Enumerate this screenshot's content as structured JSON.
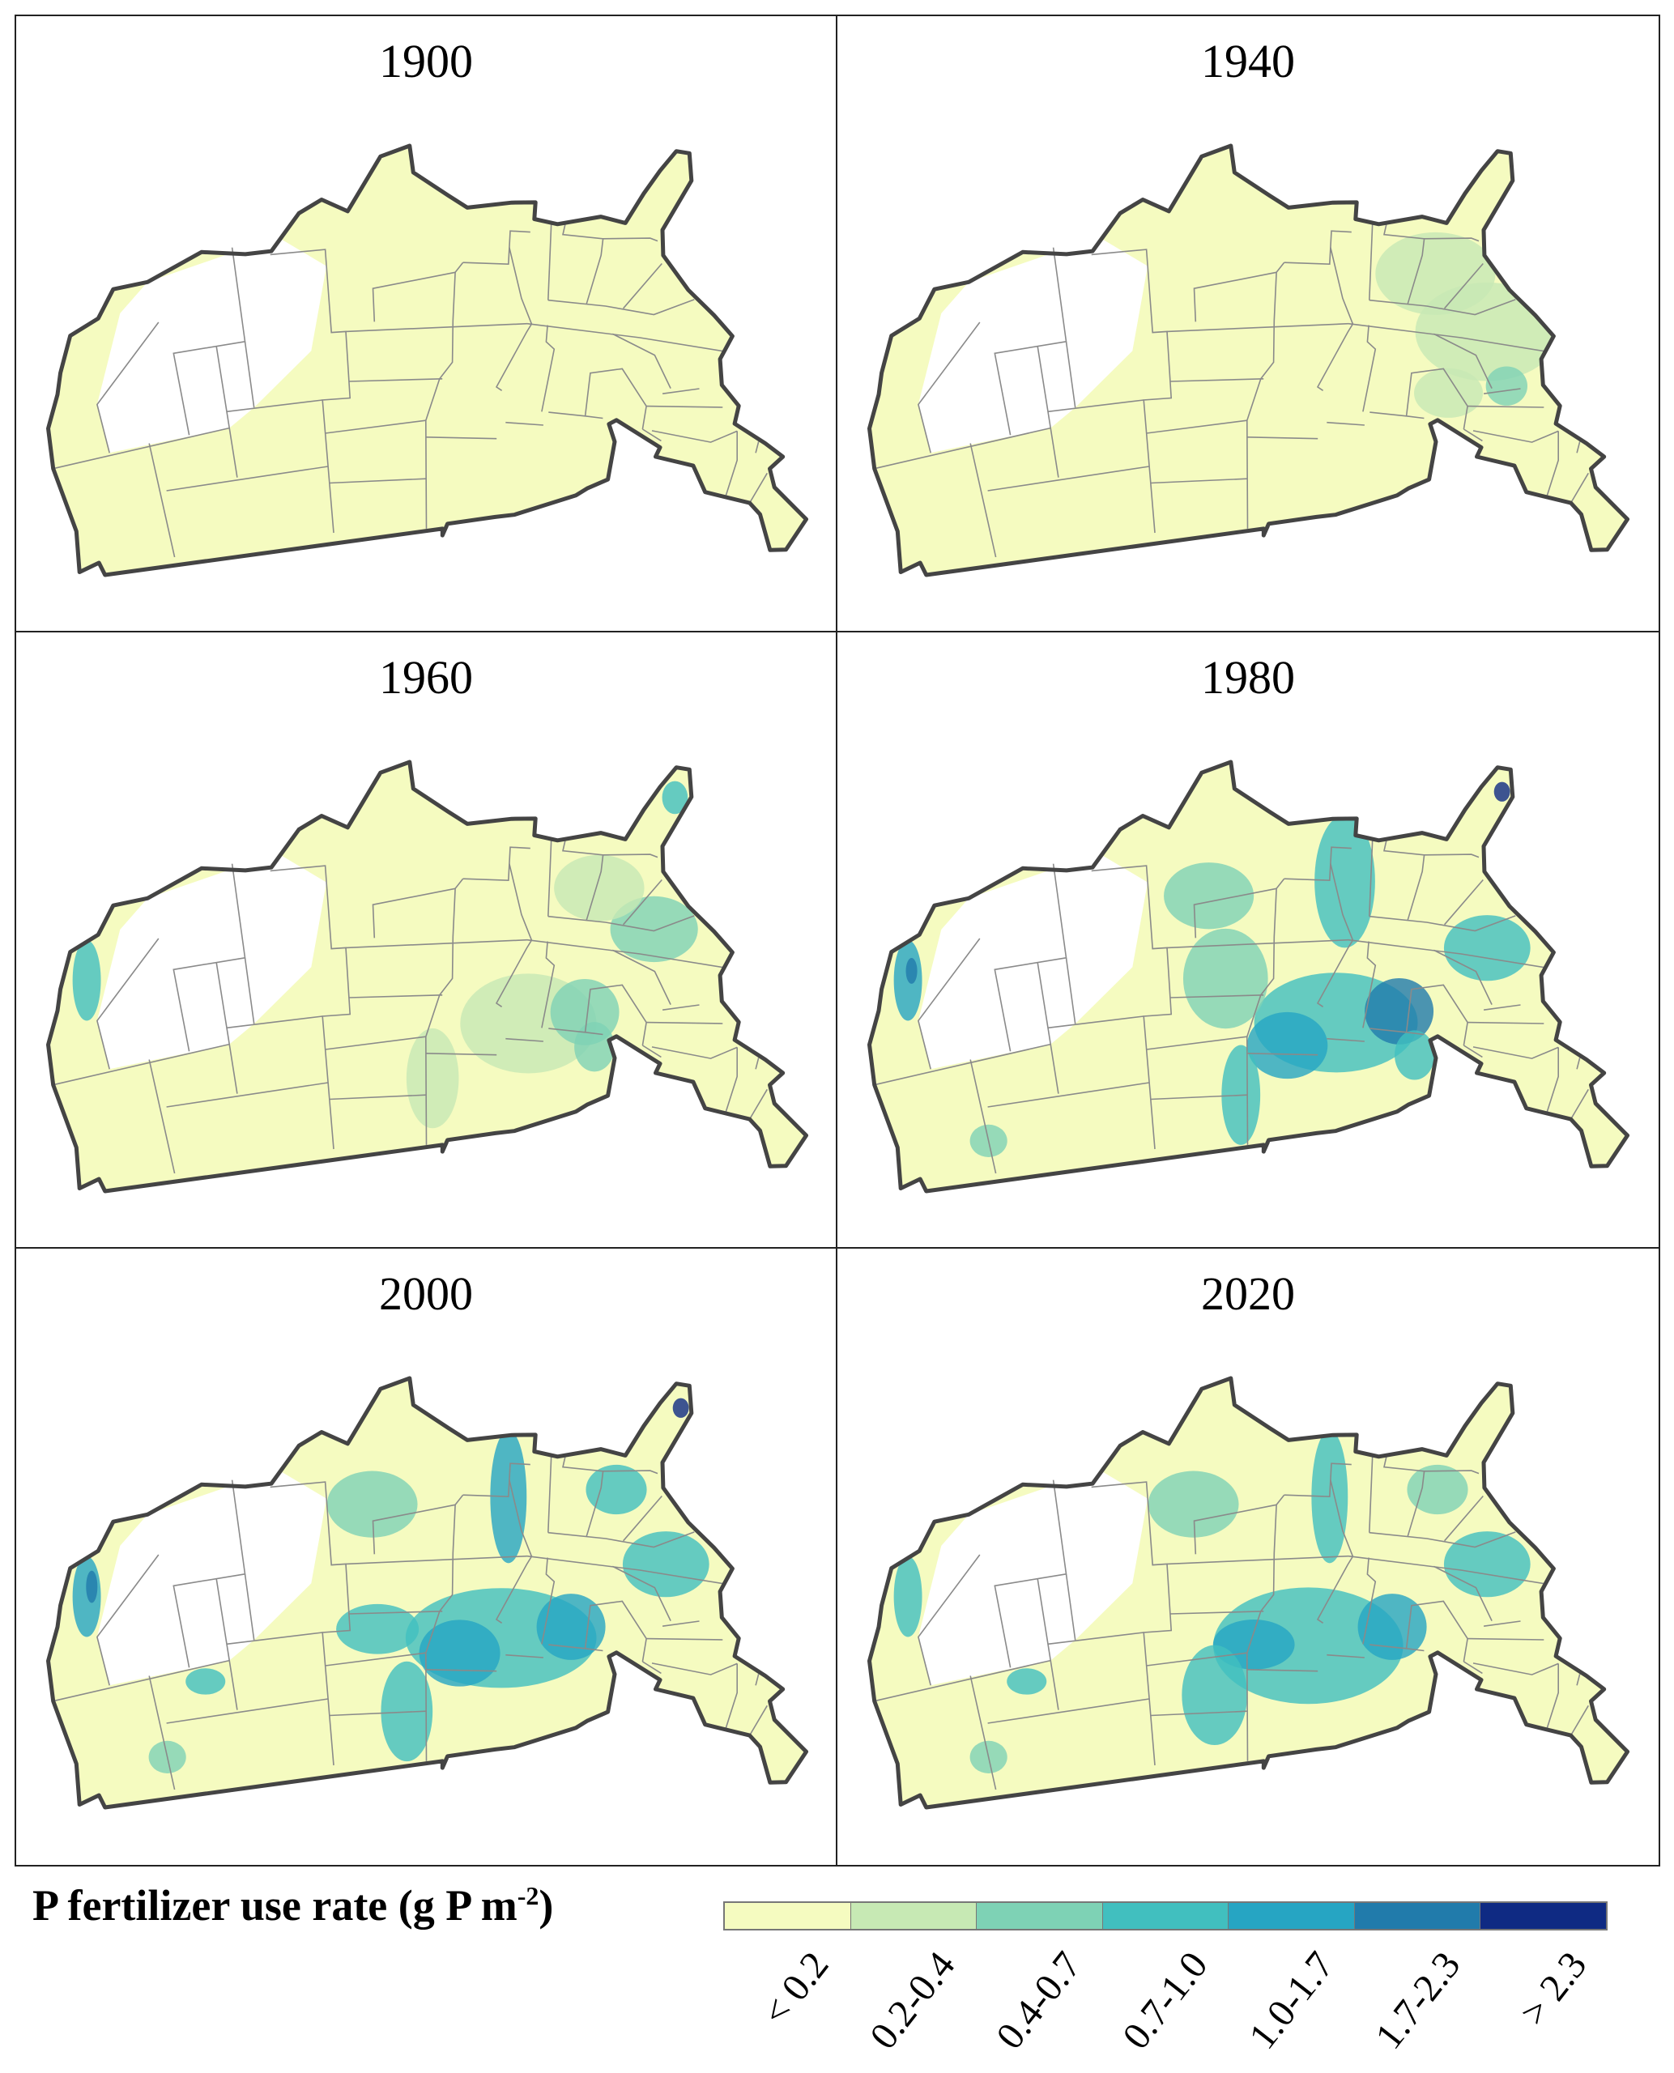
{
  "chart_data": {
    "type": "heatmap",
    "title": "",
    "legend": {
      "title_main": "P fertilizer use rate (g P m",
      "title_sup": "-2",
      "title_end": ")",
      "placement": "bottom",
      "classes": [
        "< 0.2",
        "0.2-0.4",
        "0.4-0.7",
        "0.7-1.0",
        "1.0-1.7",
        "1.7-2.3",
        "> 2.3"
      ],
      "colors": [
        "#f5fbc0",
        "#c7e9b4",
        "#7ed2b5",
        "#41bfbf",
        "#26a5c3",
        "#217bab",
        "#0f2a83"
      ]
    },
    "panels": [
      {
        "year": "1900",
        "hotspots": []
      },
      {
        "year": "1940",
        "hotspots": [
          [
            -80,
            36,
            5,
            3,
            1
          ],
          [
            -84,
            33,
            4,
            2.5,
            1
          ],
          [
            -82,
            40,
            2.5,
            1.5,
            1
          ],
          [
            -78,
            39,
            1.5,
            1.2,
            2
          ]
        ]
      },
      {
        "year": "1960",
        "hotspots": [
          [
            -89,
            41.5,
            5,
            3,
            1
          ],
          [
            -85,
            40.5,
            2.5,
            2,
            2
          ],
          [
            -84,
            42.5,
            1.5,
            1.5,
            2
          ],
          [
            -81,
            35,
            3,
            2,
            2
          ],
          [
            -85,
            33,
            3,
            2,
            1
          ],
          [
            -120,
            36.5,
            1,
            2.5,
            3
          ],
          [
            -81,
            27,
            0.8,
            1,
            3
          ],
          [
            -96,
            45,
            2,
            3,
            1
          ]
        ]
      },
      {
        "year": "1980",
        "hotspots": [
          [
            -90,
            41.5,
            6,
            3,
            3
          ],
          [
            -85.5,
            40.5,
            2.5,
            2,
            5
          ],
          [
            -84,
            43,
            1.5,
            1.5,
            3
          ],
          [
            -93.5,
            43,
            3,
            2,
            4
          ],
          [
            -97,
            46,
            1.5,
            3,
            3
          ],
          [
            -98,
            39,
            3,
            3,
            2
          ],
          [
            -80,
            36,
            3,
            2,
            3
          ],
          [
            -90,
            33,
            2,
            4,
            3
          ],
          [
            -120,
            36.5,
            1,
            2.5,
            4
          ],
          [
            -119.6,
            36,
            0.4,
            0.8,
            5
          ],
          [
            -80.7,
            26.6,
            0.5,
            0.6,
            6
          ],
          [
            -99,
            34,
            3,
            2,
            2
          ],
          [
            -117,
            47,
            1.5,
            1,
            2
          ]
        ]
      },
      {
        "year": "2000",
        "hotspots": [
          [
            -91,
            41.5,
            7,
            3,
            3
          ],
          [
            -86,
            40.5,
            2.5,
            2,
            4
          ],
          [
            -94,
            42.5,
            3,
            2,
            4
          ],
          [
            -100,
            41,
            3,
            1.5,
            3
          ],
          [
            -98,
            46,
            2,
            3,
            3
          ],
          [
            -91,
            33,
            1.2,
            4,
            4
          ],
          [
            -80,
            36,
            3,
            2,
            3
          ],
          [
            -84,
            32,
            2,
            1.5,
            3
          ],
          [
            -120,
            36.5,
            1,
            2.5,
            4
          ],
          [
            -119.5,
            36,
            0.4,
            1,
            5
          ],
          [
            -80.7,
            26.6,
            0.5,
            0.6,
            6
          ],
          [
            -113,
            43,
            1.5,
            0.8,
            3
          ],
          [
            -117,
            47,
            1.5,
            1,
            2
          ],
          [
            -100,
            33.5,
            3,
            2,
            2
          ]
        ]
      },
      {
        "year": "2020",
        "hotspots": [
          [
            -92,
            42,
            7,
            3.5,
            3
          ],
          [
            -86,
            40.5,
            2.5,
            2,
            4
          ],
          [
            -96,
            42,
            3,
            1.5,
            4
          ],
          [
            -99,
            45,
            2.5,
            3,
            3
          ],
          [
            -91,
            33,
            1.2,
            4,
            3
          ],
          [
            -80,
            36,
            3,
            2,
            3
          ],
          [
            -84,
            32,
            2,
            1.5,
            2
          ],
          [
            -120,
            36.5,
            1,
            2.5,
            3
          ],
          [
            -113,
            43,
            1.5,
            0.8,
            3
          ],
          [
            -117,
            47,
            1.5,
            1,
            2
          ],
          [
            -100,
            33.5,
            3,
            2,
            2
          ]
        ]
      }
    ]
  }
}
